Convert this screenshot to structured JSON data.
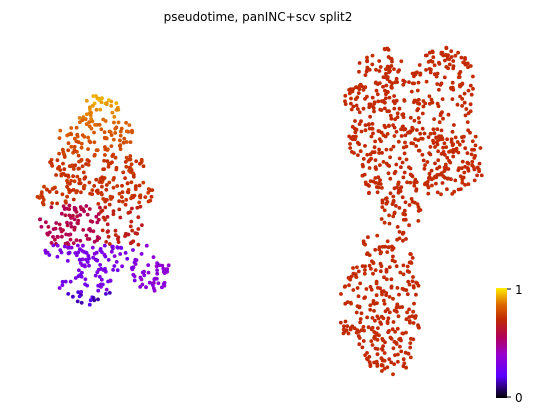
{
  "chart_data": {
    "type": "scatter",
    "title": "pseudotime, panINC+scv split2",
    "xlabel": "",
    "ylabel": "",
    "axes_visible": false,
    "grid": false,
    "legend": "colorbar at bottom-right",
    "colormap": "gnuplot",
    "colormap_stops": [
      {
        "value": 0.0,
        "color": "#000000"
      },
      {
        "value": 0.2,
        "color": "#5a00ff"
      },
      {
        "value": 0.4,
        "color": "#9a00cc"
      },
      {
        "value": 0.55,
        "color": "#b0005a"
      },
      {
        "value": 0.72,
        "color": "#c22a00"
      },
      {
        "value": 0.85,
        "color": "#dd6a00"
      },
      {
        "value": 1.0,
        "color": "#ffee00"
      }
    ],
    "colorbar": {
      "min": 0,
      "max": 1,
      "tick_labels": [
        "1",
        "0"
      ]
    },
    "clusters": [
      {
        "id": "left",
        "description_hidden": true,
        "point_count": 620
      },
      {
        "id": "right",
        "description_hidden": true,
        "point_count": 900
      }
    ]
  }
}
